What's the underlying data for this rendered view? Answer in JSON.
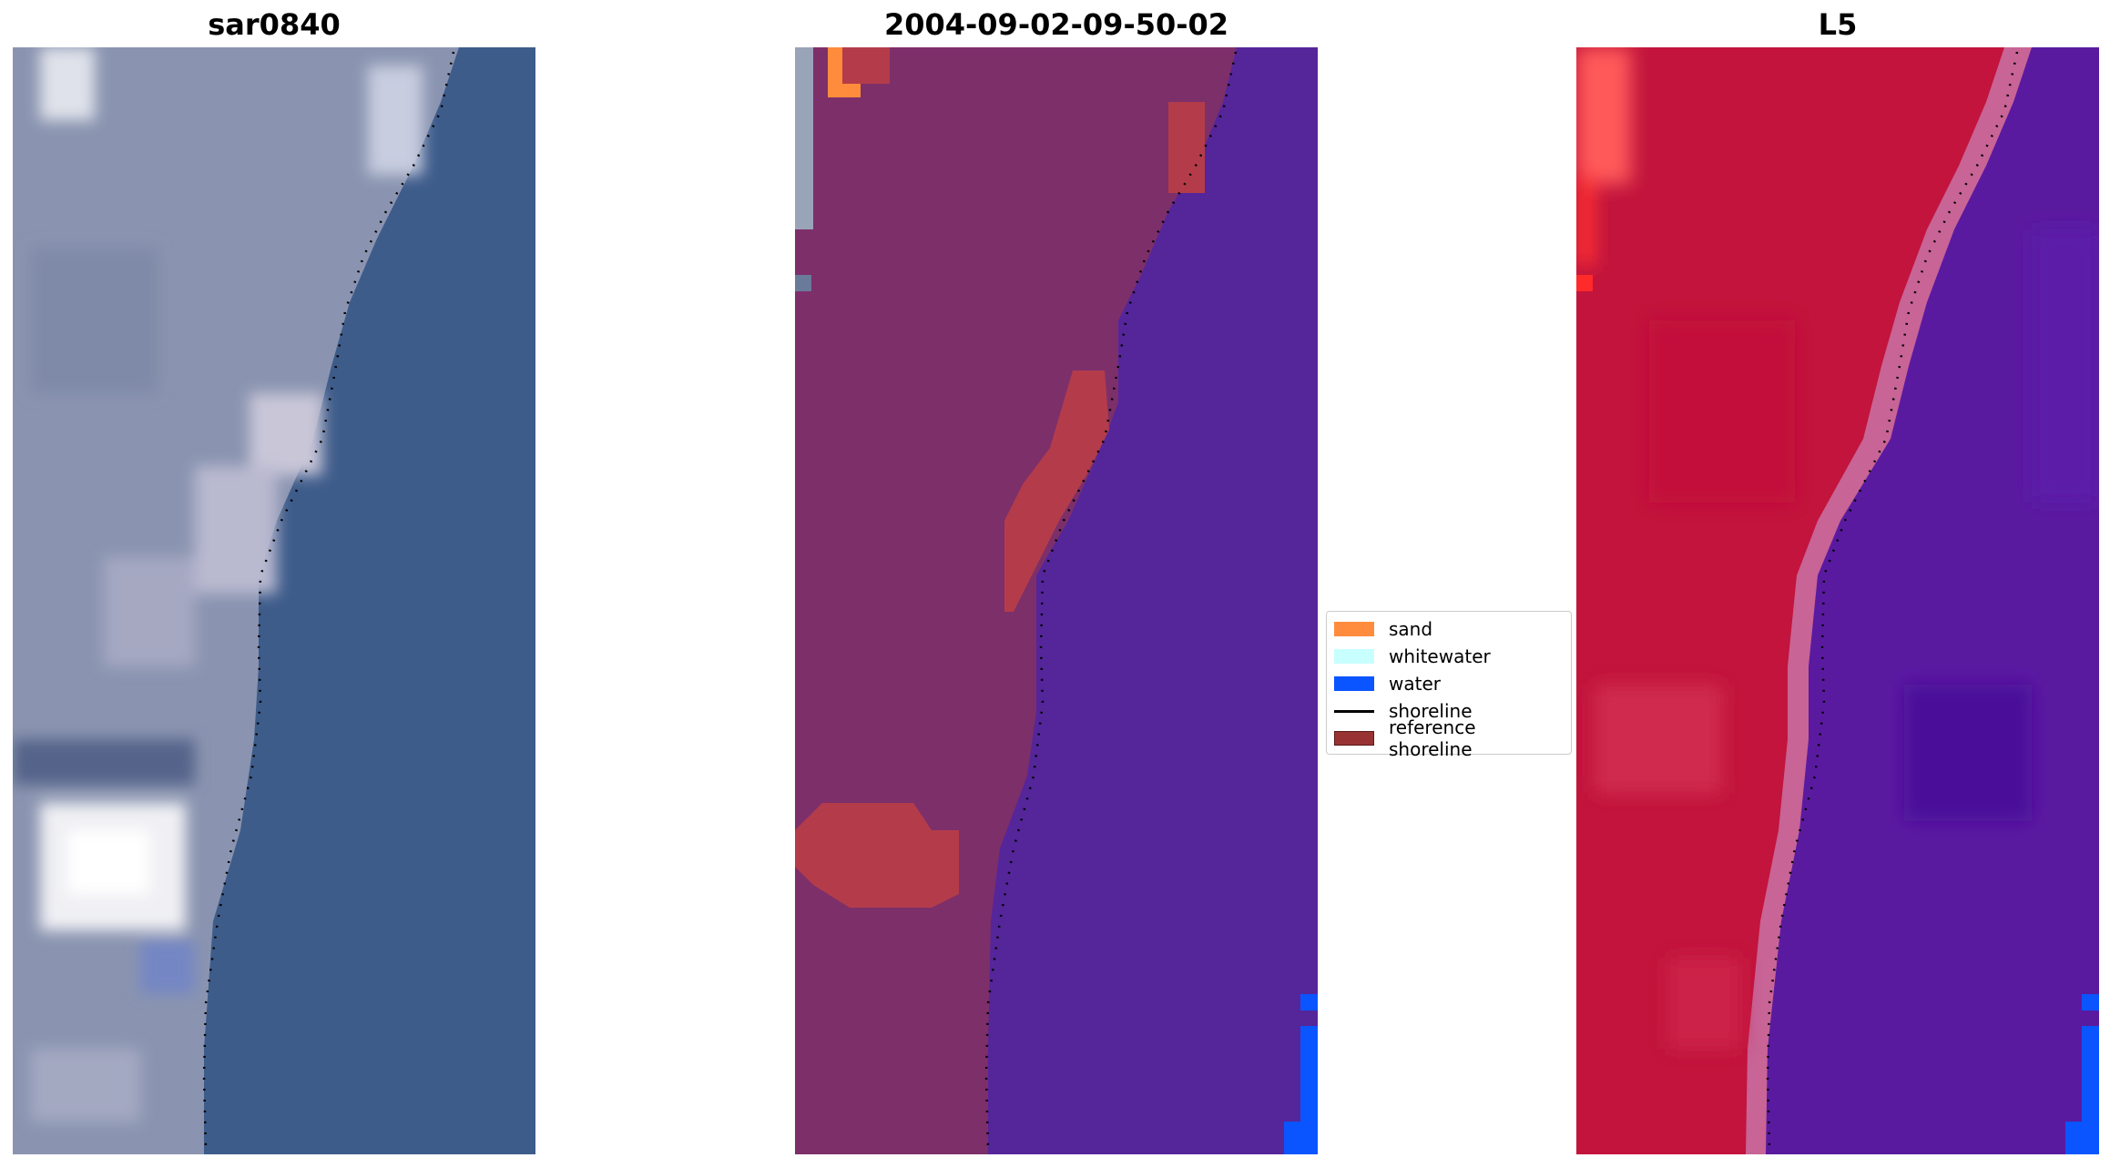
{
  "panels": [
    {
      "title": "sar0840",
      "kind": "rgb"
    },
    {
      "title": "2004-09-02-09-50-02",
      "kind": "classified"
    },
    {
      "title": "L5",
      "kind": "index"
    }
  ],
  "legend": {
    "items": [
      {
        "label": "sand",
        "color": "#ff8c3c",
        "type": "patch"
      },
      {
        "label": "whitewater",
        "color": "#c8ffff",
        "type": "patch"
      },
      {
        "label": "water",
        "color": "#0a55ff",
        "type": "patch"
      },
      {
        "label": "shoreline",
        "color": "#000000",
        "type": "line"
      },
      {
        "label": "reference shoreline",
        "color": "#993333",
        "type": "patch"
      }
    ]
  },
  "colors": {
    "rgb_land": "#8a94b0",
    "rgb_water": "#3e5c8a",
    "classified_land": "#7d2f6a",
    "classified_water": "#55259a",
    "classified_sand": "#ff8c3c",
    "classified_reference": "#b43c4a",
    "classified_blue_water": "#0a55ff",
    "index_land": "#c2143c",
    "index_water": "#5a1aa0",
    "index_transition": "#c86496",
    "shoreline": "#000000"
  }
}
